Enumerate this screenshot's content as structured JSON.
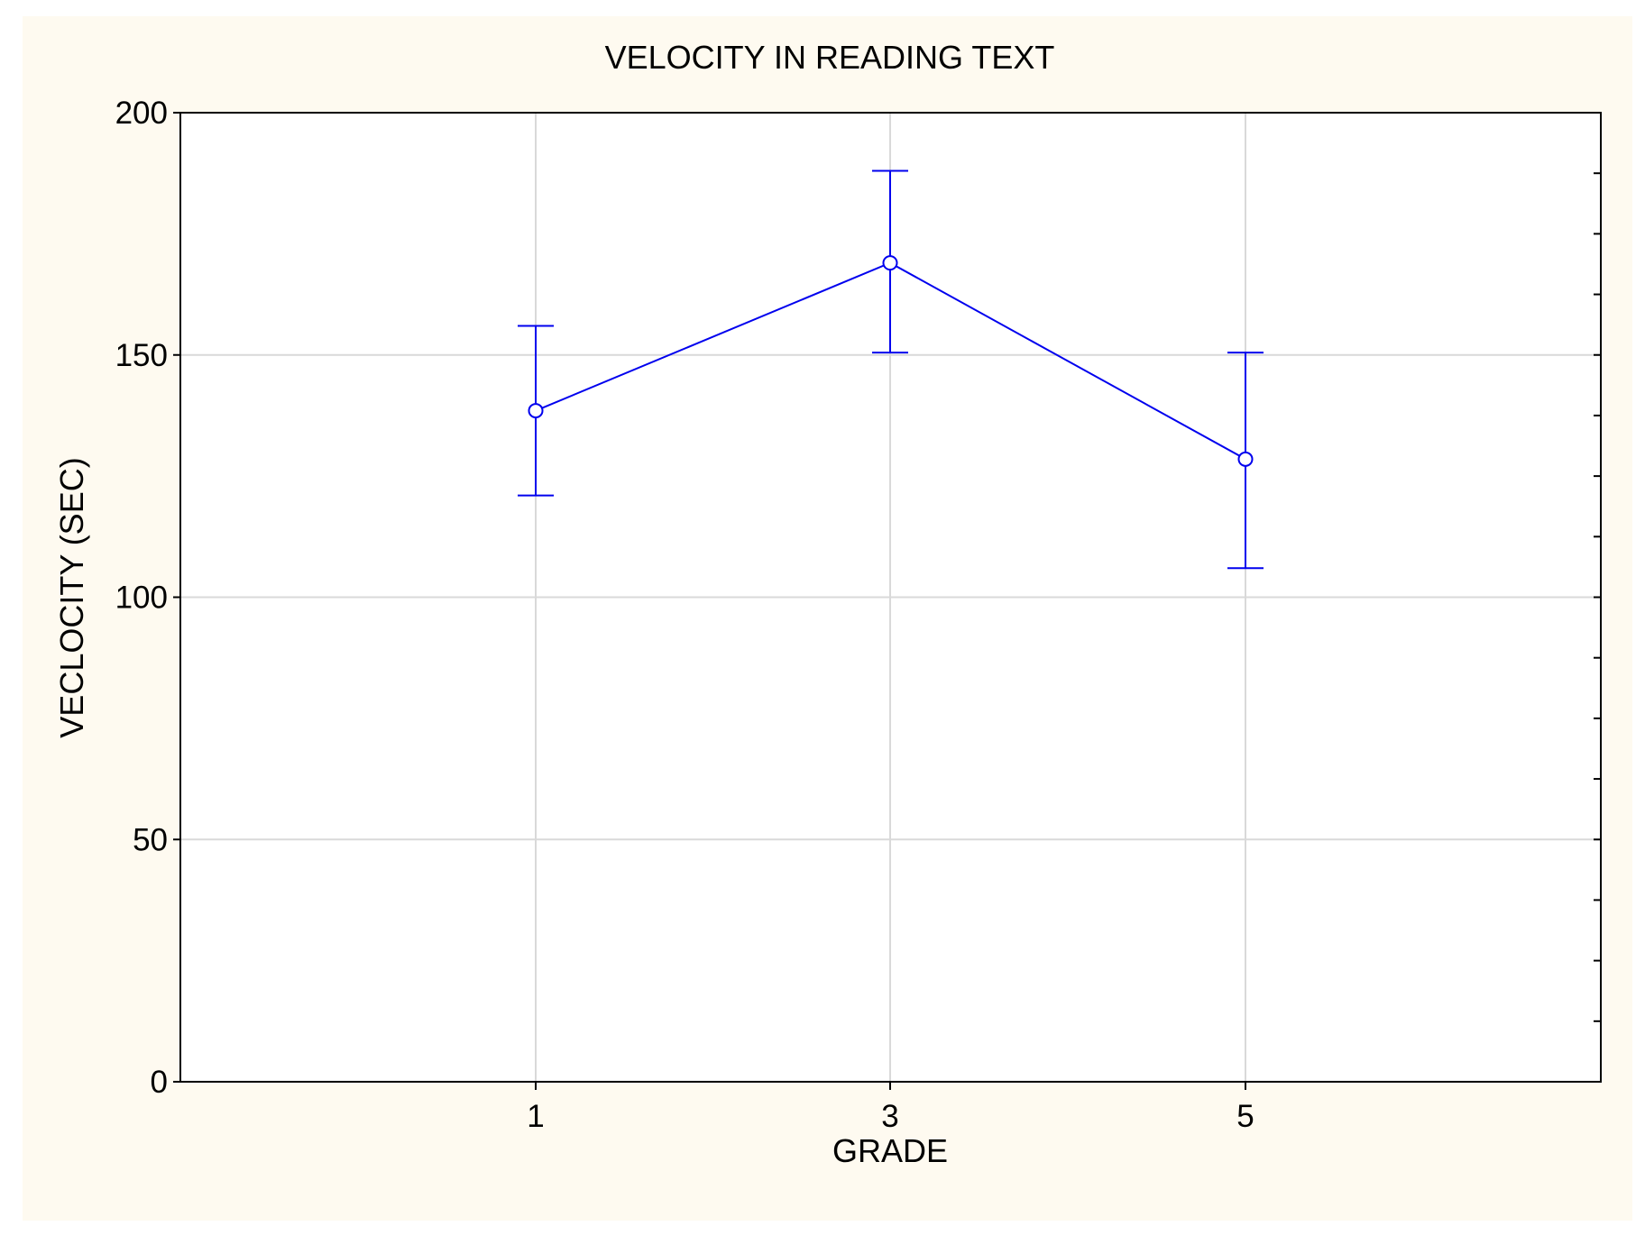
{
  "chart_data": {
    "type": "line",
    "title": "VELOCITY IN READING TEXT",
    "xlabel": "GRADE",
    "ylabel": "VECLOCITY (SEC)",
    "x": [
      "1",
      "3",
      "5"
    ],
    "series": [
      {
        "values": [
          138.5,
          169,
          128.5
        ],
        "error_low": [
          121,
          150.5,
          106
        ],
        "error_high": [
          156,
          188,
          150.5
        ]
      }
    ],
    "ylim": [
      0,
      200
    ],
    "yticks": [
      "0",
      "50",
      "100",
      "150",
      "200"
    ],
    "grid": true,
    "line_color": "#0000ee",
    "grid_color": "#d9d9d9",
    "panel_color": "#fefaf0"
  }
}
